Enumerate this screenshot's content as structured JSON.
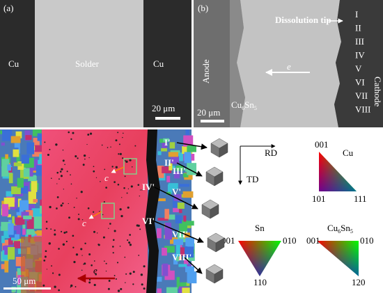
{
  "panel_a": {
    "label": "(a)",
    "left": "Cu",
    "center": "Solder",
    "right": "Cu",
    "scale": "20 μm"
  },
  "panel_b": {
    "label": "(b)",
    "tip": "Dissolution tip",
    "numerals": [
      "I",
      "II",
      "III",
      "IV",
      "V",
      "VI",
      "VII",
      "VIII"
    ],
    "anode": "Anode",
    "cathode": "Cathode",
    "electron": "e",
    "imc": [
      "Cu",
      "6",
      "Sn",
      "5"
    ],
    "scale": "20 μm"
  },
  "panel_c": {
    "grains": [
      "I'",
      "II'",
      "III'",
      "IV'",
      "V'",
      "VI'",
      "VII'",
      "VIII'"
    ],
    "axis_c": [
      "c",
      "c"
    ],
    "electron": "e",
    "scale": "50 μm"
  },
  "legend": {
    "rd": "RD",
    "td": "TD",
    "cu": {
      "name": "Cu",
      "top": "001",
      "left": "101",
      "right": "111"
    },
    "sn": {
      "name": "Sn",
      "left": "001",
      "right": "010",
      "bottom": "110"
    },
    "imc": {
      "name": [
        "Cu",
        "6",
        "Sn",
        "5"
      ],
      "left": "001",
      "right": "010",
      "bottom": "120"
    }
  }
}
